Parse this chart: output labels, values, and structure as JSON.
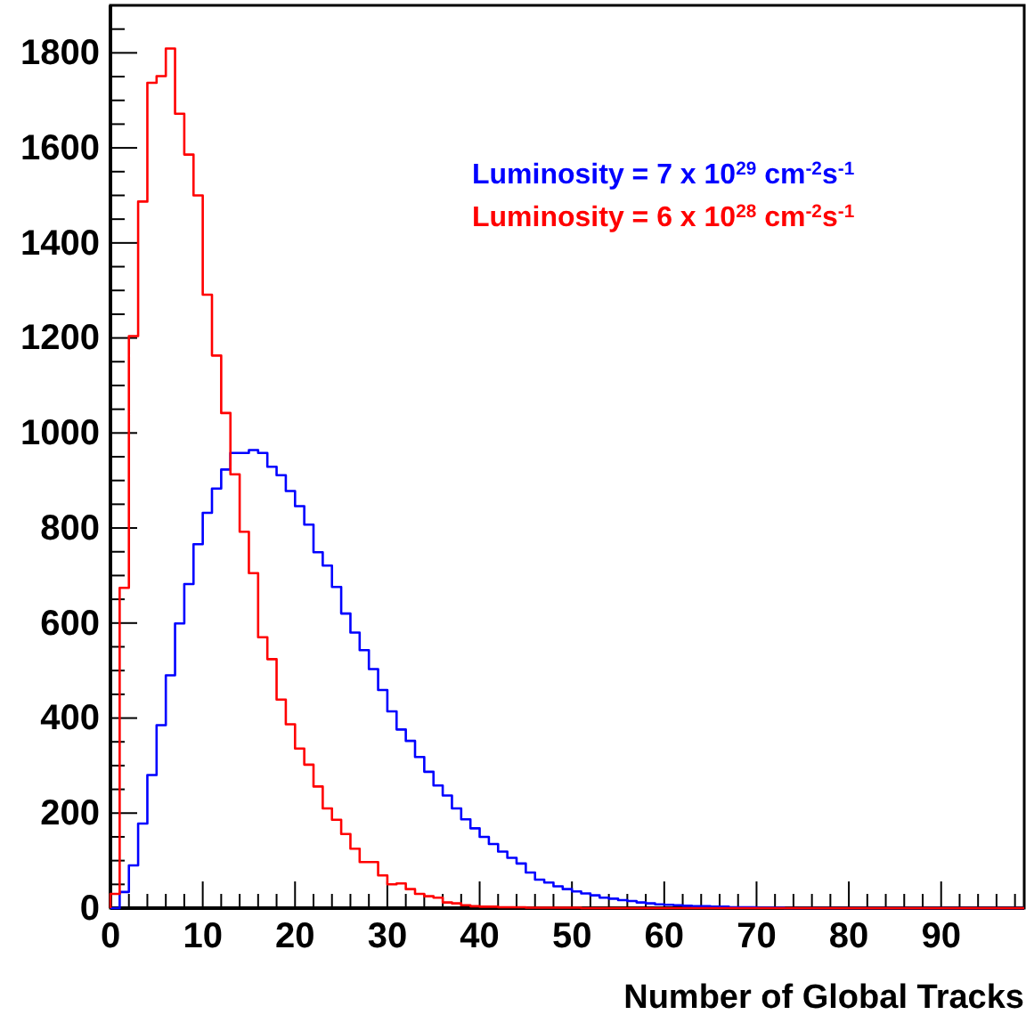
{
  "chart_data": {
    "type": "histogram",
    "xlabel": "Number of Global Tracks",
    "bins": [
      0,
      1,
      2,
      3,
      4,
      5,
      6,
      7,
      8,
      9,
      10,
      11,
      12,
      13,
      14,
      15,
      16,
      17,
      18,
      19,
      20,
      21,
      22,
      23,
      24,
      25,
      26,
      27,
      28,
      29,
      30,
      31,
      32,
      33,
      34,
      35,
      36,
      37,
      38,
      39,
      40,
      41,
      42,
      43,
      44,
      45,
      46,
      47,
      48,
      49,
      50,
      51,
      52,
      53,
      54,
      55,
      56,
      57,
      58,
      59,
      60,
      61,
      62,
      63,
      64,
      65,
      66,
      67,
      68,
      69,
      70,
      71,
      72,
      73,
      74,
      75,
      76,
      77,
      78,
      79,
      80,
      81,
      82,
      83,
      84,
      85,
      86,
      87,
      88,
      89,
      90,
      91,
      92,
      93,
      94,
      95,
      96,
      97,
      98,
      99
    ],
    "series": [
      {
        "name": "Luminosity = 7 x 10$^{29}$ cm$^{-2}$s$^{-1}$",
        "color": "#0000ff",
        "values": [
          0,
          34,
          90,
          178,
          280,
          385,
          490,
          599,
          682,
          766,
          832,
          883,
          923,
          958,
          958,
          964,
          958,
          929,
          911,
          878,
          846,
          807,
          749,
          721,
          676,
          620,
          580,
          543,
          503,
          459,
          414,
          376,
          352,
          318,
          287,
          258,
          237,
          210,
          187,
          168,
          150,
          135,
          119,
          106,
          94,
          75,
          60,
          54,
          46,
          40,
          35,
          31,
          27,
          22,
          20,
          17,
          15,
          12,
          10,
          8,
          7,
          6,
          5,
          4,
          4,
          3,
          3,
          2,
          2,
          2,
          1,
          1,
          1,
          0,
          0,
          0,
          0,
          0,
          0,
          0,
          0,
          0,
          0,
          0,
          0,
          0,
          0,
          0,
          0,
          0,
          0,
          0,
          0,
          0,
          0,
          0,
          0,
          0,
          0
        ]
      },
      {
        "name": "Luminosity = 6 x 10$^{28}$ cm$^{-2}$s$^{-1}$",
        "color": "#ff0000",
        "values": [
          30,
          674,
          1204,
          1487,
          1737,
          1751,
          1809,
          1672,
          1586,
          1500,
          1291,
          1163,
          1042,
          913,
          792,
          705,
          570,
          524,
          439,
          387,
          336,
          302,
          256,
          210,
          186,
          156,
          125,
          97,
          97,
          69,
          50,
          52,
          40,
          30,
          25,
          22,
          12,
          10,
          6,
          4,
          3,
          3,
          2,
          2,
          2,
          1,
          1,
          1,
          1,
          1,
          1,
          0,
          0,
          0,
          0,
          0,
          0,
          0,
          0,
          0,
          0,
          0,
          0,
          0,
          0,
          0,
          0,
          0,
          0,
          0,
          0,
          0,
          0,
          0,
          0,
          0,
          0,
          0,
          0,
          0,
          0,
          0,
          0,
          0,
          0,
          0,
          0,
          0,
          0,
          0,
          0,
          0,
          0,
          0,
          0,
          0,
          0,
          0,
          0
        ]
      }
    ],
    "xlim": [
      0,
      99
    ],
    "xticks": [
      0,
      {
        "value": 2,
        "label": null
      },
      {
        "value": 4,
        "label": null
      },
      {
        "value": 6,
        "label": null
      },
      {
        "value": 8,
        "label": null
      },
      10,
      {
        "value": 12,
        "label": null
      },
      {
        "value": 14,
        "label": null
      },
      {
        "value": 16,
        "label": null
      },
      {
        "value": 18,
        "label": null
      },
      20,
      {
        "value": 22,
        "label": null
      },
      {
        "value": 24,
        "label": null
      },
      {
        "value": 26,
        "label": null
      },
      {
        "value": 28,
        "label": null
      },
      30,
      {
        "value": 32,
        "label": null
      },
      {
        "value": 34,
        "label": null
      },
      {
        "value": 36,
        "label": null
      },
      {
        "value": 38,
        "label": null
      },
      40,
      {
        "value": 42,
        "label": null
      },
      {
        "value": 44,
        "label": null
      },
      {
        "value": 46,
        "label": null
      },
      {
        "value": 48,
        "label": null
      },
      50,
      {
        "value": 52,
        "label": null
      },
      {
        "value": 54,
        "label": null
      },
      {
        "value": 56,
        "label": null
      },
      {
        "value": 58,
        "label": null
      },
      60,
      {
        "value": 62,
        "label": null
      },
      {
        "value": 64,
        "label": null
      },
      {
        "value": 66,
        "label": null
      },
      {
        "value": 68,
        "label": null
      },
      70,
      {
        "value": 72,
        "label": null
      },
      {
        "value": 74,
        "label": null
      },
      {
        "value": 76,
        "label": null
      },
      {
        "value": 78,
        "label": null
      },
      80,
      {
        "value": 82,
        "label": null
      },
      {
        "value": 84,
        "label": null
      },
      {
        "value": 86,
        "label": null
      },
      {
        "value": 88,
        "label": null
      },
      90,
      {
        "value": 92,
        "label": null
      },
      {
        "value": 94,
        "label": null
      },
      {
        "value": 96,
        "label": null
      },
      {
        "value": 98,
        "label": null
      }
    ],
    "ylim": [
      0,
      1900
    ],
    "yticks": [
      0,
      {
        "value": 50,
        "label": null
      },
      {
        "value": 100,
        "label": null
      },
      {
        "value": 150,
        "label": null
      },
      200,
      {
        "value": 250,
        "label": null
      },
      {
        "value": 300,
        "label": null
      },
      {
        "value": 350,
        "label": null
      },
      400,
      {
        "value": 450,
        "label": null
      },
      {
        "value": 500,
        "label": null
      },
      {
        "value": 550,
        "label": null
      },
      600,
      {
        "value": 650,
        "label": null
      },
      {
        "value": 700,
        "label": null
      },
      {
        "value": 750,
        "label": null
      },
      800,
      {
        "value": 850,
        "label": null
      },
      {
        "value": 900,
        "label": null
      },
      {
        "value": 950,
        "label": null
      },
      1000,
      {
        "value": 1050,
        "label": null
      },
      {
        "value": 1100,
        "label": null
      },
      {
        "value": 1150,
        "label": null
      },
      1200,
      {
        "value": 1250,
        "label": null
      },
      {
        "value": 1300,
        "label": null
      },
      {
        "value": 1350,
        "label": null
      },
      1400,
      {
        "value": 1450,
        "label": null
      },
      {
        "value": 1500,
        "label": null
      },
      {
        "value": 1550,
        "label": null
      },
      1600,
      {
        "value": 1650,
        "label": null
      },
      {
        "value": 1700,
        "label": null
      },
      {
        "value": 1750,
        "label": null
      },
      1800,
      {
        "value": 1850,
        "label": null
      }
    ],
    "legend": "top right"
  }
}
